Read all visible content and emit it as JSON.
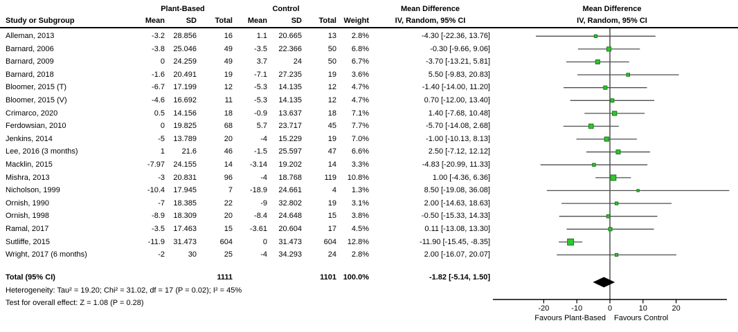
{
  "header": {
    "group_plant": "Plant-Based",
    "group_control": "Control",
    "col_study": "Study or Subgroup",
    "col_mean": "Mean",
    "col_sd": "SD",
    "col_total": "Total",
    "col_weight": "Weight",
    "md_title": "Mean Difference",
    "md_sub": "IV, Random, 95% CI"
  },
  "footer": {
    "heterogeneity": "Heterogeneity: Tau² = 19.20; Chi² = 31.02, df = 17 (P = 0.02); I² = 45%",
    "overall_effect": "Test for overall effect: Z = 1.08 (P = 0.28)"
  },
  "colors": {
    "marker_fill": "#2FC62F",
    "marker_stroke": "#157815",
    "ci_line": "#4d4d4d",
    "zero_line": "#7a7a7a",
    "diamond": "#000000",
    "axis": "#000000"
  },
  "chart_data": {
    "type": "forest",
    "effect_measure": "Mean Difference",
    "method": "IV, Random, 95% CI",
    "x_ticks": [
      -20,
      -10,
      0,
      10,
      20
    ],
    "x_axis_range": [
      -35.4,
      35.4
    ],
    "favours_left": "Favours Plant-Based",
    "favours_right": "Favours Control",
    "studies": [
      {
        "name": "Alleman, 2013",
        "pb_mean": "-3.2",
        "pb_sd": "28.856",
        "pb_total": "16",
        "c_mean": "1.1",
        "c_sd": "20.665",
        "c_total": "13",
        "weight": "2.8%",
        "ci": "-4.30 [-22.36, 13.76]",
        "md": -4.3,
        "lo": -22.36,
        "hi": 13.76
      },
      {
        "name": "Barnard, 2006",
        "pb_mean": "-3.8",
        "pb_sd": "25.046",
        "pb_total": "49",
        "c_mean": "-3.5",
        "c_sd": "22.366",
        "c_total": "50",
        "weight": "6.8%",
        "ci": "-0.30 [-9.66, 9.06]",
        "md": -0.3,
        "lo": -9.66,
        "hi": 9.06
      },
      {
        "name": "Barnard, 2009",
        "pb_mean": "0",
        "pb_sd": "24.259",
        "pb_total": "49",
        "c_mean": "3.7",
        "c_sd": "24",
        "c_total": "50",
        "weight": "6.7%",
        "ci": "-3.70 [-13.21, 5.81]",
        "md": -3.7,
        "lo": -13.21,
        "hi": 5.81
      },
      {
        "name": "Barnard, 2018",
        "pb_mean": "-1.6",
        "pb_sd": "20.491",
        "pb_total": "19",
        "c_mean": "-7.1",
        "c_sd": "27.235",
        "c_total": "19",
        "weight": "3.6%",
        "ci": "5.50 [-9.83, 20.83]",
        "md": 5.5,
        "lo": -9.83,
        "hi": 20.83
      },
      {
        "name": "Bloomer, 2015 (T)",
        "pb_mean": "-6.7",
        "pb_sd": "17.199",
        "pb_total": "12",
        "c_mean": "-5.3",
        "c_sd": "14.135",
        "c_total": "12",
        "weight": "4.7%",
        "ci": "-1.40 [-14.00, 11.20]",
        "md": -1.4,
        "lo": -14.0,
        "hi": 11.2
      },
      {
        "name": "Bloomer, 2015 (V)",
        "pb_mean": "-4.6",
        "pb_sd": "16.692",
        "pb_total": "11",
        "c_mean": "-5.3",
        "c_sd": "14.135",
        "c_total": "12",
        "weight": "4.7%",
        "ci": "0.70 [-12.00, 13.40]",
        "md": 0.7,
        "lo": -12.0,
        "hi": 13.4
      },
      {
        "name": "Crimarco, 2020",
        "pb_mean": "0.5",
        "pb_sd": "14.156",
        "pb_total": "18",
        "c_mean": "-0.9",
        "c_sd": "13.637",
        "c_total": "18",
        "weight": "7.1%",
        "ci": "1.40 [-7.68, 10.48]",
        "md": 1.4,
        "lo": -7.68,
        "hi": 10.48
      },
      {
        "name": "Ferdowsian, 2010",
        "pb_mean": "0",
        "pb_sd": "19.825",
        "pb_total": "68",
        "c_mean": "5.7",
        "c_sd": "23.717",
        "c_total": "45",
        "weight": "7.7%",
        "ci": "-5.70 [-14.08, 2.68]",
        "md": -5.7,
        "lo": -14.08,
        "hi": 2.68
      },
      {
        "name": "Jenkins, 2014",
        "pb_mean": "-5",
        "pb_sd": "13.789",
        "pb_total": "20",
        "c_mean": "-4",
        "c_sd": "15.229",
        "c_total": "19",
        "weight": "7.0%",
        "ci": "-1.00 [-10.13, 8.13]",
        "md": -1.0,
        "lo": -10.13,
        "hi": 8.13
      },
      {
        "name": "Lee, 2016 (3 months)",
        "pb_mean": "1",
        "pb_sd": "21.6",
        "pb_total": "46",
        "c_mean": "-1.5",
        "c_sd": "25.597",
        "c_total": "47",
        "weight": "6.6%",
        "ci": "2.50 [-7.12, 12.12]",
        "md": 2.5,
        "lo": -7.12,
        "hi": 12.12
      },
      {
        "name": "Macklin, 2015",
        "pb_mean": "-7.97",
        "pb_sd": "24.155",
        "pb_total": "14",
        "c_mean": "-3.14",
        "c_sd": "19.202",
        "c_total": "14",
        "weight": "3.3%",
        "ci": "-4.83 [-20.99, 11.33]",
        "md": -4.83,
        "lo": -20.99,
        "hi": 11.33
      },
      {
        "name": "Mishra, 2013",
        "pb_mean": "-3",
        "pb_sd": "20.831",
        "pb_total": "96",
        "c_mean": "-4",
        "c_sd": "18.768",
        "c_total": "119",
        "weight": "10.8%",
        "ci": "1.00 [-4.36, 6.36]",
        "md": 1.0,
        "lo": -4.36,
        "hi": 6.36
      },
      {
        "name": "Nicholson, 1999",
        "pb_mean": "-10.4",
        "pb_sd": "17.945",
        "pb_total": "7",
        "c_mean": "-18.9",
        "c_sd": "24.661",
        "c_total": "4",
        "weight": "1.3%",
        "ci": "8.50 [-19.08, 36.08]",
        "md": 8.5,
        "lo": -19.08,
        "hi": 36.08
      },
      {
        "name": "Ornish, 1990",
        "pb_mean": "-7",
        "pb_sd": "18.385",
        "pb_total": "22",
        "c_mean": "-9",
        "c_sd": "32.802",
        "c_total": "19",
        "weight": "3.1%",
        "ci": "2.00 [-14.63, 18.63]",
        "md": 2.0,
        "lo": -14.63,
        "hi": 18.63
      },
      {
        "name": "Ornish, 1998",
        "pb_mean": "-8.9",
        "pb_sd": "18.309",
        "pb_total": "20",
        "c_mean": "-8.4",
        "c_sd": "24.648",
        "c_total": "15",
        "weight": "3.8%",
        "ci": "-0.50 [-15.33, 14.33]",
        "md": -0.5,
        "lo": -15.33,
        "hi": 14.33
      },
      {
        "name": "Ramal, 2017",
        "pb_mean": "-3.5",
        "pb_sd": "17.463",
        "pb_total": "15",
        "c_mean": "-3.61",
        "c_sd": "20.604",
        "c_total": "17",
        "weight": "4.5%",
        "ci": "0.11 [-13.08, 13.30]",
        "md": 0.11,
        "lo": -13.08,
        "hi": 13.3
      },
      {
        "name": "Sutliffe, 2015",
        "pb_mean": "-11.9",
        "pb_sd": "31.473",
        "pb_total": "604",
        "c_mean": "0",
        "c_sd": "31.473",
        "c_total": "604",
        "weight": "12.8%",
        "ci": "-11.90 [-15.45, -8.35]",
        "md": -11.9,
        "lo": -15.45,
        "hi": -8.35
      },
      {
        "name": "Wright, 2017 (6 months)",
        "pb_mean": "-2",
        "pb_sd": "30",
        "pb_total": "25",
        "c_mean": "-4",
        "c_sd": "34.293",
        "c_total": "24",
        "weight": "2.8%",
        "ci": "2.00 [-16.07, 20.07]",
        "md": 2.0,
        "lo": -16.07,
        "hi": 20.07
      }
    ],
    "total": {
      "label": "Total (95% CI)",
      "pb_total": "1111",
      "c_total": "1101",
      "weight": "100.0%",
      "ci": "-1.82 [-5.14, 1.50]",
      "md": -1.82,
      "lo": -5.14,
      "hi": 1.5
    }
  }
}
